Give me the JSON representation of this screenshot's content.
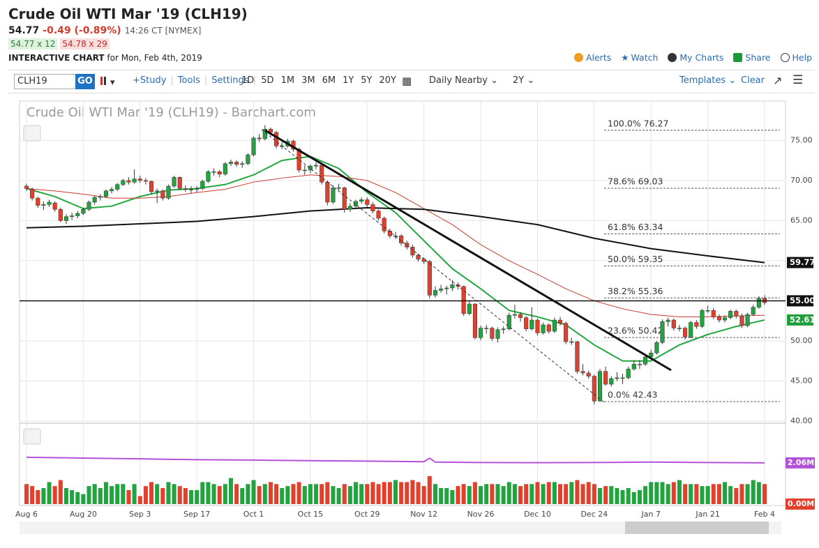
{
  "header": {
    "title": "Crude Oil WTI Mar '19 (CLH19)",
    "last": "54.77",
    "change": "-0.49 (-0.89%)",
    "time": "14:26 CT [NYMEX]",
    "bid": "54.77 x 12",
    "ask": "54.78 x 29",
    "chart_label": "INTERACTIVE CHART",
    "date": "for Mon, Feb 4th, 2019",
    "links": [
      "Alerts",
      "Watch",
      "My Charts",
      "Share",
      "Help"
    ]
  },
  "toolbar": {
    "symbol": "CLH19",
    "go": "GO",
    "items": [
      "+Study",
      "Tools",
      "Settings"
    ],
    "periods": [
      "1D",
      "5D",
      "1M",
      "3M",
      "6M",
      "1Y",
      "5Y",
      "20Y"
    ],
    "frequency": "Daily Nearby",
    "range": "2Y",
    "templates": "Templates",
    "clear": "Clear"
  },
  "chart_data": {
    "type": "candlestick",
    "title": "Crude Oil WTI Mar '19 (CLH19) - Barchart.com",
    "up_color": "#21a33f",
    "down_color": "#e0402c",
    "grid": true,
    "ylim": [
      40,
      79.9
    ],
    "yticks": [
      {
        "value": 40,
        "label": "40.00"
      },
      {
        "value": 45,
        "label": "45.00"
      },
      {
        "value": 50,
        "label": "50.00"
      },
      {
        "value": 55,
        "label": "55.00"
      },
      {
        "value": 60,
        "label": "60.00"
      },
      {
        "value": 65,
        "label": "65.00"
      },
      {
        "value": 70,
        "label": "70.00"
      },
      {
        "value": 75,
        "label": "75.00"
      }
    ],
    "categories": [
      "Aug 6",
      null,
      null,
      null,
      null,
      null,
      null,
      null,
      null,
      null,
      "Aug 20",
      null,
      null,
      null,
      null,
      null,
      null,
      null,
      null,
      null,
      "Sep 3",
      null,
      null,
      null,
      null,
      null,
      null,
      null,
      null,
      null,
      "Sep 17",
      null,
      null,
      null,
      null,
      null,
      null,
      null,
      null,
      null,
      "Oct 1",
      null,
      null,
      null,
      null,
      null,
      null,
      null,
      null,
      null,
      "Oct 15",
      null,
      null,
      null,
      null,
      null,
      null,
      null,
      null,
      null,
      "Oct 29",
      null,
      null,
      null,
      null,
      null,
      null,
      null,
      null,
      null,
      "Nov 12",
      null,
      null,
      null,
      null,
      null,
      null,
      null,
      null,
      null,
      "Nov 26",
      null,
      null,
      null,
      null,
      null,
      null,
      null,
      null,
      null,
      "Dec 10",
      null,
      null,
      null,
      null,
      null,
      null,
      null,
      null,
      null,
      "Dec 24",
      null,
      null,
      null,
      null,
      null,
      null,
      null,
      null,
      null,
      "Jan 7",
      null,
      null,
      null,
      null,
      null,
      null,
      null,
      null,
      null,
      "Jan 21",
      null,
      null,
      null,
      null,
      null,
      null,
      null,
      null,
      null,
      "Feb 4"
    ],
    "candles": [
      [
        69.3,
        69.6,
        68.7,
        69.0
      ],
      [
        68.9,
        69.1,
        67.5,
        67.8
      ],
      [
        67.8,
        68.0,
        66.6,
        66.9
      ],
      [
        66.9,
        67.4,
        66.3,
        67.0
      ],
      [
        67.0,
        67.6,
        66.7,
        67.3
      ],
      [
        67.2,
        67.4,
        66.1,
        66.4
      ],
      [
        66.4,
        66.6,
        64.8,
        65.0
      ],
      [
        65.0,
        65.8,
        64.6,
        65.5
      ],
      [
        65.5,
        66.0,
        65.1,
        65.6
      ],
      [
        65.6,
        66.2,
        65.3,
        65.9
      ],
      [
        65.9,
        66.6,
        65.7,
        66.4
      ],
      [
        66.4,
        67.5,
        66.2,
        67.3
      ],
      [
        67.3,
        68.1,
        67.0,
        67.9
      ],
      [
        67.9,
        68.3,
        67.5,
        68.0
      ],
      [
        68.0,
        68.9,
        67.8,
        68.7
      ],
      [
        68.7,
        69.2,
        68.4,
        68.9
      ],
      [
        68.9,
        69.7,
        68.7,
        69.5
      ],
      [
        69.5,
        70.2,
        69.3,
        70.0
      ],
      [
        70.0,
        70.4,
        69.5,
        69.8
      ],
      [
        69.8,
        71.4,
        69.6,
        70.2
      ],
      [
        70.2,
        70.6,
        69.7,
        70.0
      ],
      [
        70.0,
        70.3,
        69.5,
        69.9
      ],
      [
        69.9,
        70.0,
        68.3,
        68.6
      ],
      [
        68.6,
        69.0,
        67.2,
        68.7
      ],
      [
        68.7,
        68.9,
        67.5,
        67.8
      ],
      [
        67.8,
        69.5,
        67.6,
        69.3
      ],
      [
        69.3,
        70.6,
        69.1,
        70.4
      ],
      [
        70.4,
        70.5,
        68.8,
        69.0
      ],
      [
        69.0,
        69.4,
        68.6,
        68.9
      ],
      [
        68.9,
        69.3,
        68.4,
        68.9
      ],
      [
        68.9,
        69.3,
        68.5,
        69.0
      ],
      [
        69.0,
        70.1,
        68.8,
        69.9
      ],
      [
        69.9,
        71.3,
        69.7,
        71.1
      ],
      [
        71.1,
        71.5,
        70.6,
        71.1
      ],
      [
        71.1,
        71.3,
        70.4,
        70.8
      ],
      [
        70.8,
        72.3,
        70.6,
        72.1
      ],
      [
        72.1,
        72.6,
        71.8,
        72.3
      ],
      [
        72.3,
        72.5,
        71.7,
        72.0
      ],
      [
        72.0,
        72.4,
        71.6,
        72.1
      ],
      [
        72.1,
        73.4,
        71.9,
        73.2
      ],
      [
        73.2,
        75.5,
        73.0,
        75.3
      ],
      [
        75.3,
        75.8,
        74.8,
        75.2
      ],
      [
        75.2,
        76.9,
        75.0,
        76.4
      ],
      [
        76.4,
        76.6,
        75.6,
        76.0
      ],
      [
        76.0,
        76.2,
        74.0,
        74.3
      ],
      [
        74.3,
        74.8,
        73.9,
        74.3
      ],
      [
        74.3,
        75.2,
        74.1,
        74.9
      ],
      [
        74.9,
        75.1,
        73.6,
        73.9
      ],
      [
        73.9,
        74.1,
        71.0,
        71.3
      ],
      [
        71.3,
        71.9,
        70.7,
        71.3
      ],
      [
        71.3,
        72.0,
        70.9,
        71.8
      ],
      [
        71.8,
        72.3,
        71.4,
        71.9
      ],
      [
        71.9,
        72.2,
        69.5,
        69.8
      ],
      [
        69.8,
        70.0,
        66.9,
        67.3
      ],
      [
        67.3,
        69.4,
        67.1,
        69.1
      ],
      [
        69.1,
        69.6,
        68.7,
        69.1
      ],
      [
        69.1,
        69.2,
        66.0,
        66.4
      ],
      [
        66.4,
        67.2,
        66.1,
        66.8
      ],
      [
        66.8,
        67.6,
        66.5,
        67.4
      ],
      [
        67.4,
        67.9,
        67.1,
        67.6
      ],
      [
        67.6,
        67.9,
        66.7,
        67.0
      ],
      [
        67.0,
        67.3,
        65.9,
        66.2
      ],
      [
        66.2,
        66.4,
        65.0,
        65.3
      ],
      [
        65.3,
        65.5,
        63.4,
        63.7
      ],
      [
        63.7,
        64.0,
        62.8,
        63.1
      ],
      [
        63.1,
        63.6,
        62.7,
        63.1
      ],
      [
        63.1,
        63.3,
        61.9,
        62.2
      ],
      [
        62.2,
        62.5,
        61.4,
        61.7
      ],
      [
        61.7,
        62.0,
        60.4,
        60.7
      ],
      [
        60.7,
        60.9,
        59.9,
        60.2
      ],
      [
        60.2,
        60.4,
        59.6,
        59.9
      ],
      [
        59.9,
        60.1,
        55.3,
        55.7
      ],
      [
        55.7,
        56.8,
        55.4,
        56.3
      ],
      [
        56.3,
        57.0,
        56.0,
        56.5
      ],
      [
        56.5,
        56.9,
        55.8,
        56.6
      ],
      [
        56.6,
        57.6,
        56.2,
        57.0
      ],
      [
        57.0,
        57.3,
        56.4,
        56.8
      ],
      [
        56.8,
        56.9,
        53.1,
        53.4
      ],
      [
        53.4,
        55.0,
        53.2,
        54.6
      ],
      [
        54.6,
        54.7,
        50.2,
        50.4
      ],
      [
        50.4,
        51.9,
        50.1,
        51.6
      ],
      [
        51.6,
        52.0,
        50.9,
        51.6
      ],
      [
        51.6,
        51.8,
        50.0,
        50.3
      ],
      [
        50.3,
        51.7,
        49.8,
        51.4
      ],
      [
        51.4,
        51.8,
        50.9,
        51.5
      ],
      [
        51.5,
        53.5,
        51.3,
        53.2
      ],
      [
        53.2,
        54.5,
        52.8,
        53.3
      ],
      [
        53.3,
        53.6,
        52.4,
        52.9
      ],
      [
        52.9,
        53.1,
        51.2,
        51.5
      ],
      [
        51.5,
        54.2,
        51.3,
        52.6
      ],
      [
        52.6,
        52.8,
        50.7,
        51.0
      ],
      [
        51.0,
        52.3,
        50.8,
        52.0
      ],
      [
        52.0,
        52.2,
        50.9,
        51.2
      ],
      [
        51.2,
        52.9,
        51.0,
        52.6
      ],
      [
        52.6,
        53.0,
        51.9,
        52.2
      ],
      [
        52.2,
        52.4,
        49.6,
        49.9
      ],
      [
        49.9,
        50.4,
        49.5,
        49.9
      ],
      [
        49.9,
        50.0,
        45.9,
        46.2
      ],
      [
        46.2,
        47.1,
        45.7,
        46.0
      ],
      [
        46.0,
        46.3,
        45.3,
        45.6
      ],
      [
        45.6,
        45.8,
        42.1,
        42.5
      ],
      [
        42.5,
        46.5,
        42.4,
        46.2
      ],
      [
        46.2,
        46.8,
        44.4,
        44.6
      ],
      [
        44.6,
        45.6,
        44.3,
        45.3
      ],
      [
        45.3,
        46.1,
        45.0,
        45.4
      ],
      [
        45.4,
        45.9,
        44.6,
        45.4
      ],
      [
        45.4,
        46.8,
        45.2,
        46.5
      ],
      [
        46.5,
        47.6,
        46.3,
        47.1
      ],
      [
        47.1,
        47.6,
        46.5,
        47.1
      ],
      [
        47.1,
        48.3,
        46.9,
        48.0
      ],
      [
        48.0,
        48.9,
        47.8,
        48.5
      ],
      [
        48.5,
        50.0,
        48.3,
        49.8
      ],
      [
        49.8,
        52.7,
        49.6,
        52.4
      ],
      [
        52.4,
        52.9,
        51.8,
        52.6
      ],
      [
        52.6,
        52.8,
        51.3,
        51.6
      ],
      [
        51.6,
        52.0,
        51.2,
        51.6
      ],
      [
        51.6,
        51.8,
        50.2,
        50.5
      ],
      [
        50.5,
        52.5,
        50.3,
        52.3
      ],
      [
        52.3,
        52.6,
        51.5,
        51.8
      ],
      [
        51.8,
        54.0,
        51.6,
        53.8
      ],
      [
        53.8,
        54.4,
        53.5,
        53.8
      ],
      [
        53.8,
        54.1,
        52.7,
        53.0
      ],
      [
        53.0,
        53.3,
        52.3,
        52.6
      ],
      [
        52.6,
        53.2,
        52.3,
        52.9
      ],
      [
        52.9,
        53.9,
        52.7,
        53.7
      ],
      [
        53.7,
        53.9,
        52.8,
        53.1
      ],
      [
        53.1,
        53.4,
        51.6,
        51.9
      ],
      [
        51.9,
        53.5,
        51.7,
        53.3
      ],
      [
        53.3,
        54.5,
        53.1,
        54.2
      ],
      [
        54.2,
        55.6,
        54.0,
        55.3
      ],
      [
        55.3,
        55.7,
        54.5,
        54.77
      ]
    ],
    "moving_averages": [
      {
        "color": "#22a63e",
        "x": [
          0,
          5,
          10,
          15,
          20,
          25,
          30,
          35,
          40,
          45,
          50,
          55,
          60,
          65,
          70,
          75,
          80,
          85,
          90,
          95,
          100,
          105,
          110,
          115,
          120,
          125,
          130
        ],
        "values": [
          69.0,
          68.0,
          66.5,
          66.8,
          68.0,
          68.8,
          69.0,
          69.5,
          70.7,
          72.5,
          73.0,
          71.5,
          68.5,
          66.0,
          62.5,
          59.0,
          56.5,
          53.8,
          53.0,
          52.0,
          49.5,
          47.5,
          47.5,
          49.5,
          50.8,
          51.8,
          52.61
        ]
      },
      {
        "color": "#c9382c",
        "x": [
          0,
          5,
          10,
          15,
          20,
          25,
          30,
          35,
          40,
          45,
          50,
          55,
          60,
          65,
          70,
          75,
          80,
          85,
          90,
          95,
          100,
          105,
          110,
          115,
          120,
          125,
          130
        ],
        "values": [
          69.0,
          68.7,
          68.3,
          67.8,
          67.8,
          68.0,
          68.5,
          68.9,
          69.8,
          70.3,
          70.7,
          70.5,
          70.0,
          68.5,
          66.5,
          64.5,
          62.0,
          60.0,
          58.3,
          56.5,
          55.0,
          54.0,
          53.3,
          53.0,
          53.0,
          53.1,
          53.2
        ]
      },
      {
        "color": "#111111",
        "x": [
          0,
          10,
          20,
          30,
          40,
          50,
          60,
          70,
          80,
          90,
          100,
          110,
          120,
          130
        ],
        "values": [
          64.1,
          64.3,
          64.6,
          64.9,
          65.5,
          66.2,
          66.6,
          66.4,
          65.5,
          64.5,
          62.8,
          61.5,
          60.6,
          59.77
        ]
      }
    ],
    "fib_levels": [
      {
        "label": "100.0% 76.27",
        "value": 76.27
      },
      {
        "label": "78.6% 69.03",
        "value": 69.03
      },
      {
        "label": "61.8% 63.34",
        "value": 63.34
      },
      {
        "label": "50.0% 59.35",
        "value": 59.35
      },
      {
        "label": "38.2% 55.36",
        "value": 55.36
      },
      {
        "label": "23.6% 50.42",
        "value": 50.42
      },
      {
        "label": "0.0% 42.43",
        "value": 42.43
      }
    ],
    "price_tags": [
      {
        "value": 59.77,
        "label": "59.77",
        "color": "#111111"
      },
      {
        "value": 55,
        "label": "55.00",
        "color": "#111111"
      },
      {
        "value": 52.61,
        "label": "52.61",
        "color": "#1f9e3c"
      }
    ],
    "volume": {
      "ylim": [
        0,
        3.87
      ],
      "yticks": [
        {
          "value": 0,
          "label": "0.00M"
        },
        {
          "value": 2.06,
          "label": "2.06M"
        }
      ],
      "values": [
        1.0,
        0.9,
        0.7,
        0.8,
        1.1,
        0.9,
        1.2,
        0.8,
        0.7,
        0.6,
        0.5,
        0.9,
        1.0,
        0.8,
        1.1,
        0.9,
        1.0,
        1.0,
        0.7,
        1.0,
        0.4,
        0.9,
        1.1,
        1.0,
        0.8,
        1.1,
        1.0,
        0.9,
        0.8,
        0.7,
        0.7,
        1.1,
        1.1,
        1.0,
        0.9,
        1.0,
        1.3,
        1.0,
        0.8,
        1.0,
        1.2,
        0.9,
        1.0,
        1.1,
        1.0,
        0.8,
        0.9,
        1.0,
        1.1,
        0.9,
        1.0,
        1.0,
        1.0,
        1.1,
        0.9,
        0.8,
        1.0,
        0.9,
        1.1,
        1.0,
        1.0,
        1.1,
        1.0,
        1.1,
        1.1,
        1.2,
        1.1,
        1.1,
        1.2,
        1.1,
        0.9,
        1.4,
        1.0,
        0.8,
        0.8,
        0.7,
        0.9,
        1.0,
        0.9,
        1.1,
        0.9,
        1.0,
        1.0,
        1.0,
        0.9,
        1.1,
        1.0,
        0.9,
        1.0,
        1.0,
        1.1,
        1.0,
        1.1,
        1.1,
        1.0,
        1.0,
        1.1,
        1.2,
        1.0,
        1.1,
        1.0,
        0.8,
        0.9,
        0.9,
        0.8,
        0.7,
        0.8,
        0.6,
        0.7,
        0.9,
        1.1,
        1.1,
        1.1,
        1.0,
        1.1,
        1.2,
        1.0,
        1.0,
        1.0,
        0.9,
        0.9,
        1.0,
        1.0,
        1.1,
        0.9,
        0.8,
        1.0,
        1.0,
        1.2,
        1.1,
        1.0
      ],
      "line": {
        "color": "#b352d6",
        "x": [
          0,
          10,
          20,
          30,
          40,
          50,
          60,
          70,
          71,
          72,
          80,
          90,
          100,
          110,
          120,
          130
        ],
        "values": [
          2.34,
          2.3,
          2.26,
          2.22,
          2.2,
          2.17,
          2.15,
          2.12,
          2.3,
          2.1,
          2.08,
          2.07,
          2.08,
          2.1,
          2.08,
          2.06
        ]
      }
    }
  }
}
